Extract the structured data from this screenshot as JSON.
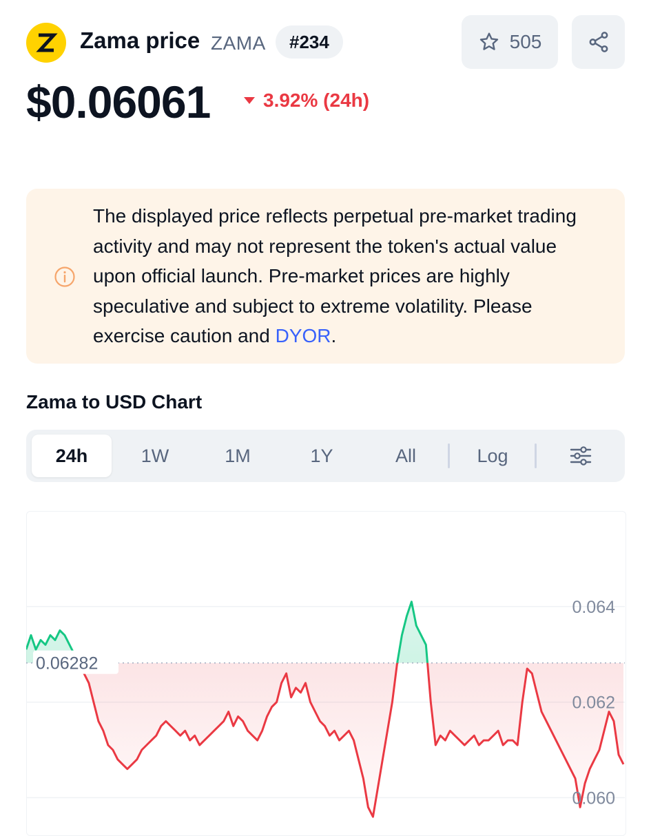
{
  "header": {
    "logo_letter": "Z",
    "coin_name": "Zama price",
    "symbol": "ZAMA",
    "rank": "#234",
    "favorites_count": "505",
    "favorite_icon": "star-icon",
    "share_icon": "share-icon"
  },
  "price": {
    "value": "$0.06061",
    "change": "3.92% (24h)",
    "direction": "down",
    "down_color": "#ea3943",
    "up_color": "#16c784"
  },
  "notice": {
    "icon": "info-icon",
    "text": "The displayed price reflects perpetual pre-market trading activity and may not represent the token's actual value upon official launch. Pre-market prices are highly speculative and subject to extreme volatility. Please exercise caution and ",
    "link": "DYOR",
    "suffix": "."
  },
  "chart_section": {
    "title": "Zama to USD Chart",
    "tabs": [
      "24h",
      "1W",
      "1M",
      "1Y",
      "All"
    ],
    "active_tab": "24h",
    "log_label": "Log",
    "settings_icon": "sliders-icon"
  },
  "chart_data": {
    "type": "line",
    "reference_value": 0.06282,
    "reference_label": "0.06282",
    "y_ticks": [
      "0.064",
      "0.062",
      "0.060"
    ],
    "ylim": [
      0.0594,
      0.066
    ],
    "values": [
      0.0631,
      0.0634,
      0.0631,
      0.0633,
      0.0632,
      0.0634,
      0.0633,
      0.0635,
      0.0634,
      0.0632,
      0.063,
      0.0628,
      0.0626,
      0.0624,
      0.062,
      0.0616,
      0.0614,
      0.0611,
      0.061,
      0.0608,
      0.0607,
      0.0606,
      0.0607,
      0.0608,
      0.061,
      0.0611,
      0.0612,
      0.0613,
      0.0615,
      0.0616,
      0.0615,
      0.0614,
      0.0613,
      0.0614,
      0.0612,
      0.0613,
      0.0611,
      0.0612,
      0.0613,
      0.0614,
      0.0615,
      0.0616,
      0.0618,
      0.0615,
      0.0617,
      0.0616,
      0.0614,
      0.0613,
      0.0612,
      0.0614,
      0.0617,
      0.0619,
      0.062,
      0.0624,
      0.0626,
      0.0621,
      0.0623,
      0.0622,
      0.0624,
      0.062,
      0.0618,
      0.0616,
      0.0615,
      0.0613,
      0.0614,
      0.0612,
      0.0613,
      0.0614,
      0.0612,
      0.0608,
      0.0604,
      0.0598,
      0.0596,
      0.0602,
      0.0608,
      0.0614,
      0.062,
      0.0628,
      0.0634,
      0.0638,
      0.0641,
      0.0636,
      0.0634,
      0.0632,
      0.062,
      0.0611,
      0.0613,
      0.0612,
      0.0614,
      0.0613,
      0.0612,
      0.0611,
      0.0612,
      0.0613,
      0.0611,
      0.0612,
      0.0612,
      0.0613,
      0.0614,
      0.0611,
      0.0612,
      0.0612,
      0.0611,
      0.062,
      0.0627,
      0.0626,
      0.0622,
      0.0618,
      0.0616,
      0.0614,
      0.0612,
      0.061,
      0.0608,
      0.0606,
      0.0604,
      0.0598,
      0.0603,
      0.0606,
      0.0608,
      0.061,
      0.0614,
      0.0618,
      0.0616,
      0.0609,
      0.0607
    ]
  }
}
